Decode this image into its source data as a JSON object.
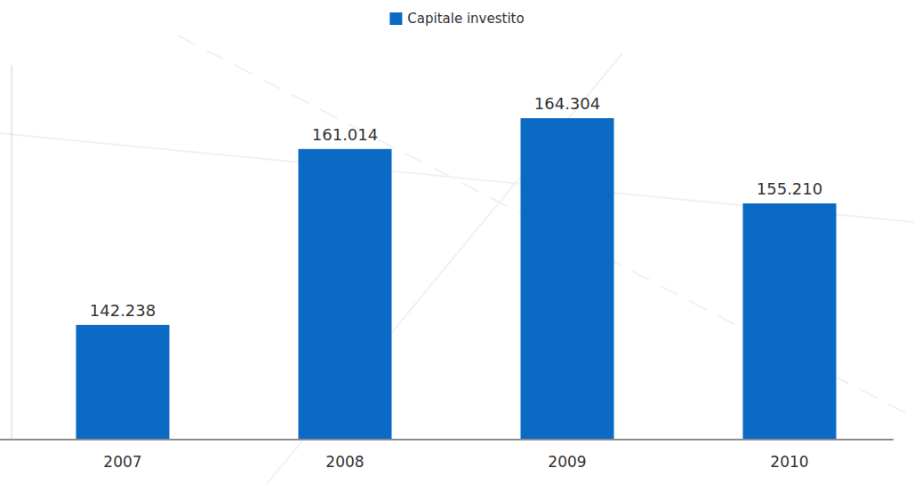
{
  "chart_data": {
    "type": "bar",
    "categories": [
      "2007",
      "2008",
      "2009",
      "2010"
    ],
    "series": [
      {
        "name": "Capitale investito",
        "color": "#0a6ac4",
        "values": [
          142238,
          161014,
          164304,
          155210
        ],
        "value_labels": [
          "142.238",
          "161.014",
          "164.304",
          "155.210"
        ]
      }
    ],
    "ylim": [
      130000,
      170000
    ],
    "data_labels": true,
    "tick_labels": "x",
    "legend": "top",
    "grid": false
  }
}
